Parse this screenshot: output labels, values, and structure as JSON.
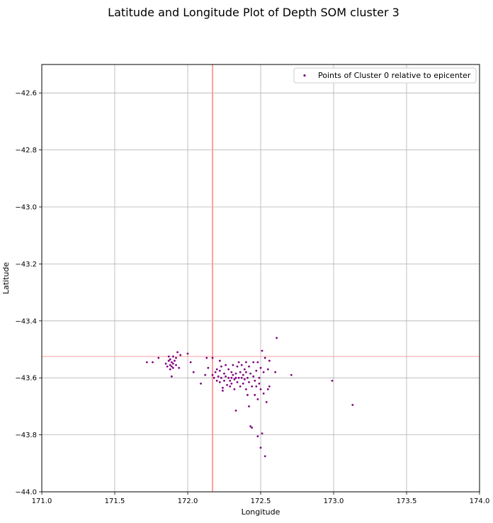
{
  "chart_data": {
    "type": "scatter",
    "title": "Latitude and Longitude Plot of Depth SOM cluster 3",
    "xlabel": "Longitude",
    "ylabel": "Latitude",
    "xlim": [
      171.0,
      174.0
    ],
    "ylim": [
      -44.0,
      -42.5
    ],
    "xticks": [
      171.0,
      171.5,
      172.0,
      172.5,
      173.0,
      173.5,
      174.0
    ],
    "xtick_labels": [
      "171.0",
      "171.5",
      "172.0",
      "172.5",
      "173.0",
      "173.5",
      "174.0"
    ],
    "yticks": [
      -42.6,
      -42.8,
      -43.0,
      -43.2,
      -43.4,
      -43.6,
      -43.8,
      -44.0
    ],
    "ytick_labels": [
      "−42.6",
      "−42.8",
      "−43.0",
      "−43.2",
      "−43.4",
      "−43.6",
      "−43.8",
      "−44.0"
    ],
    "grid": true,
    "legend_position": "top-right",
    "reference_lines": {
      "vertical_x": 172.17,
      "horizontal_y": -43.525,
      "color": "#ff9f9f"
    },
    "series": [
      {
        "name": "Points of Cluster 0 relative to epicenter",
        "color": "#800080",
        "points": [
          [
            171.72,
            -43.545
          ],
          [
            171.76,
            -43.545
          ],
          [
            171.8,
            -43.53
          ],
          [
            171.85,
            -43.55
          ],
          [
            171.86,
            -43.56
          ],
          [
            171.87,
            -43.54
          ],
          [
            171.87,
            -43.525
          ],
          [
            171.88,
            -43.535
          ],
          [
            171.88,
            -43.555
          ],
          [
            171.88,
            -43.57
          ],
          [
            171.89,
            -43.545
          ],
          [
            171.89,
            -43.56
          ],
          [
            171.89,
            -43.595
          ],
          [
            171.9,
            -43.525
          ],
          [
            171.9,
            -43.55
          ],
          [
            171.9,
            -43.565
          ],
          [
            171.91,
            -43.54
          ],
          [
            171.92,
            -43.53
          ],
          [
            171.92,
            -43.555
          ],
          [
            171.93,
            -43.51
          ],
          [
            171.94,
            -43.565
          ],
          [
            171.95,
            -43.52
          ],
          [
            172.0,
            -43.515
          ],
          [
            172.02,
            -43.545
          ],
          [
            172.04,
            -43.58
          ],
          [
            172.09,
            -43.62
          ],
          [
            172.12,
            -43.59
          ],
          [
            172.13,
            -43.53
          ],
          [
            172.14,
            -43.565
          ],
          [
            172.17,
            -43.53
          ],
          [
            172.17,
            -43.59
          ],
          [
            172.18,
            -43.6
          ],
          [
            172.19,
            -43.58
          ],
          [
            172.2,
            -43.61
          ],
          [
            172.2,
            -43.57
          ],
          [
            172.21,
            -43.595
          ],
          [
            172.22,
            -43.54
          ],
          [
            172.22,
            -43.575
          ],
          [
            172.22,
            -43.615
          ],
          [
            172.23,
            -43.56
          ],
          [
            172.23,
            -43.6
          ],
          [
            172.24,
            -43.635
          ],
          [
            172.24,
            -43.645
          ],
          [
            172.25,
            -43.585
          ],
          [
            172.25,
            -43.61
          ],
          [
            172.26,
            -43.555
          ],
          [
            172.26,
            -43.595
          ],
          [
            172.27,
            -43.625
          ],
          [
            172.28,
            -43.6
          ],
          [
            172.28,
            -43.57
          ],
          [
            172.29,
            -43.61
          ],
          [
            172.29,
            -43.63
          ],
          [
            172.3,
            -43.58
          ],
          [
            172.3,
            -43.6
          ],
          [
            172.3,
            -43.62
          ],
          [
            172.31,
            -43.555
          ],
          [
            172.31,
            -43.59
          ],
          [
            172.32,
            -43.605
          ],
          [
            172.32,
            -43.64
          ],
          [
            172.33,
            -43.585
          ],
          [
            172.33,
            -43.6
          ],
          [
            172.33,
            -43.715
          ],
          [
            172.34,
            -43.56
          ],
          [
            172.34,
            -43.615
          ],
          [
            172.35,
            -43.6
          ],
          [
            172.35,
            -43.545
          ],
          [
            172.36,
            -43.58
          ],
          [
            172.36,
            -43.63
          ],
          [
            172.37,
            -43.6
          ],
          [
            172.37,
            -43.555
          ],
          [
            172.38,
            -43.59
          ],
          [
            172.38,
            -43.62
          ],
          [
            172.39,
            -43.57
          ],
          [
            172.39,
            -43.605
          ],
          [
            172.4,
            -43.545
          ],
          [
            172.4,
            -43.58
          ],
          [
            172.4,
            -43.64
          ],
          [
            172.41,
            -43.6
          ],
          [
            172.41,
            -43.66
          ],
          [
            172.42,
            -43.615
          ],
          [
            172.42,
            -43.56
          ],
          [
            172.42,
            -43.7
          ],
          [
            172.43,
            -43.585
          ],
          [
            172.43,
            -43.77
          ],
          [
            172.44,
            -43.775
          ],
          [
            172.44,
            -43.63
          ],
          [
            172.45,
            -43.595
          ],
          [
            172.45,
            -43.545
          ],
          [
            172.46,
            -43.61
          ],
          [
            172.46,
            -43.66
          ],
          [
            172.47,
            -43.575
          ],
          [
            172.47,
            -43.63
          ],
          [
            172.48,
            -43.545
          ],
          [
            172.48,
            -43.675
          ],
          [
            172.48,
            -43.805
          ],
          [
            172.49,
            -43.6
          ],
          [
            172.49,
            -43.62
          ],
          [
            172.5,
            -43.565
          ],
          [
            172.5,
            -43.64
          ],
          [
            172.5,
            -43.845
          ],
          [
            172.51,
            -43.505
          ],
          [
            172.51,
            -43.795
          ],
          [
            172.52,
            -43.58
          ],
          [
            172.52,
            -43.655
          ],
          [
            172.53,
            -43.53
          ],
          [
            172.53,
            -43.875
          ],
          [
            172.54,
            -43.685
          ],
          [
            172.55,
            -43.57
          ],
          [
            172.55,
            -43.64
          ],
          [
            172.56,
            -43.54
          ],
          [
            172.56,
            -43.63
          ],
          [
            172.6,
            -43.58
          ],
          [
            172.61,
            -43.46
          ],
          [
            172.71,
            -43.59
          ],
          [
            172.99,
            -43.61
          ],
          [
            173.13,
            -43.695
          ]
        ]
      }
    ]
  }
}
